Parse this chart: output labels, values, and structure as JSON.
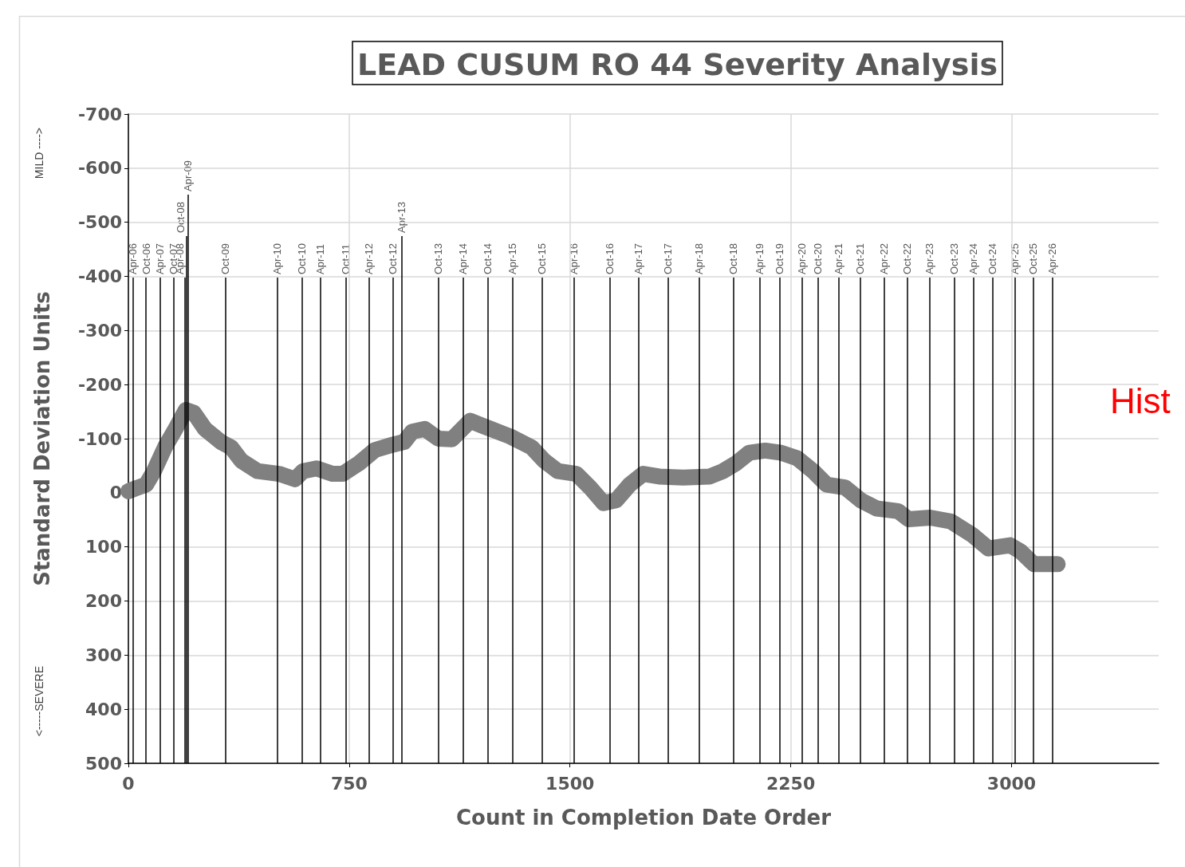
{
  "chart_data": {
    "type": "line",
    "title": "LEAD CUSUM RO 44 Severity Analysis",
    "xlabel": "Count in Completion Date Order",
    "ylabel": "Standard Deviation Units",
    "annotations": [
      "MILD ---->",
      "<-----SEVERE",
      "Hist"
    ],
    "xlim": [
      0,
      3500
    ],
    "xticks": [
      0,
      750,
      1500,
      2250,
      3000
    ],
    "ylim": [
      500,
      -700
    ],
    "yticks": [
      -700,
      -600,
      -500,
      -400,
      -300,
      -200,
      -100,
      0,
      100,
      200,
      300,
      400,
      500
    ],
    "grid": true,
    "line_style": "solid",
    "series": [
      {
        "color": "#808080",
        "x": [
          0,
          24,
          60,
          87,
          124,
          160,
          195,
          222,
          260,
          314,
          349,
          384,
          439,
          512,
          566,
          593,
          639,
          693,
          728,
          782,
          837,
          899,
          937,
          964,
          1007,
          1053,
          1099,
          1161,
          1207,
          1297,
          1370,
          1413,
          1459,
          1522,
          1568,
          1614,
          1657,
          1703,
          1749,
          1803,
          1884,
          1974,
          2020,
          2063,
          2109,
          2163,
          2217,
          2272,
          2326,
          2372,
          2434,
          2488,
          2542,
          2615,
          2651,
          2724,
          2794,
          2867,
          2922,
          2995,
          3030,
          3076,
          3119,
          3157
        ],
        "values": [
          -3,
          -8,
          -15,
          -40,
          -84,
          -118,
          -153,
          -148,
          -118,
          -94,
          -84,
          -59,
          -40,
          -35,
          -25,
          -40,
          -45,
          -35,
          -35,
          -54,
          -79,
          -89,
          -94,
          -113,
          -118,
          -100,
          -99,
          -133,
          -123,
          -104,
          -84,
          -59,
          -40,
          -35,
          -10,
          19,
          14,
          -15,
          -35,
          -30,
          -28,
          -30,
          -40,
          -54,
          -74,
          -78,
          -74,
          -64,
          -40,
          -15,
          -10,
          14,
          29,
          34,
          49,
          46,
          53,
          78,
          103,
          97,
          108,
          132,
          132,
          132
        ]
      }
    ],
    "ref_lines": [
      {
        "axis": "x",
        "value": 16,
        "label": "Apr-06"
      },
      {
        "axis": "x",
        "value": 60,
        "label": "Oct-06"
      },
      {
        "axis": "x",
        "value": 108,
        "label": "Apr-07"
      },
      {
        "axis": "x",
        "value": 154,
        "label": "Oct-07"
      },
      {
        "axis": "x",
        "value": 192,
        "label": "Apr-08"
      },
      {
        "axis": "x",
        "value": 198,
        "label": "Oct-08"
      },
      {
        "axis": "x",
        "value": 203,
        "label": "Apr-09"
      },
      {
        "axis": "x",
        "value": 330,
        "label": "Oct-09"
      },
      {
        "axis": "x",
        "value": 506,
        "label": "Apr-10"
      },
      {
        "axis": "x",
        "value": 590,
        "label": "Oct-10"
      },
      {
        "axis": "x",
        "value": 652,
        "label": "Apr-11"
      },
      {
        "axis": "x",
        "value": 739,
        "label": "Oct-11"
      },
      {
        "axis": "x",
        "value": 818,
        "label": "Apr-12"
      },
      {
        "axis": "x",
        "value": 899,
        "label": "Oct-12"
      },
      {
        "axis": "x",
        "value": 929,
        "label": "Apr-13"
      },
      {
        "axis": "x",
        "value": 1053,
        "label": "Oct-13"
      },
      {
        "axis": "x",
        "value": 1137,
        "label": "Apr-14"
      },
      {
        "axis": "x",
        "value": 1221,
        "label": "Oct-14"
      },
      {
        "axis": "x",
        "value": 1305,
        "label": "Apr-15"
      },
      {
        "axis": "x",
        "value": 1405,
        "label": "Oct-15"
      },
      {
        "axis": "x",
        "value": 1514,
        "label": "Apr-16"
      },
      {
        "axis": "x",
        "value": 1635,
        "label": "Oct-16"
      },
      {
        "axis": "x",
        "value": 1733,
        "label": "Apr-17"
      },
      {
        "axis": "x",
        "value": 1833,
        "label": "Oct-17"
      },
      {
        "axis": "x",
        "value": 1939,
        "label": "Apr-18"
      },
      {
        "axis": "x",
        "value": 2055,
        "label": "Oct-18"
      },
      {
        "axis": "x",
        "value": 2144,
        "label": "Apr-19"
      },
      {
        "axis": "x",
        "value": 2212,
        "label": "Oct-19"
      },
      {
        "axis": "x",
        "value": 2288,
        "label": "Apr-20"
      },
      {
        "axis": "x",
        "value": 2342,
        "label": "Oct-20"
      },
      {
        "axis": "x",
        "value": 2412,
        "label": "Apr-21"
      },
      {
        "axis": "x",
        "value": 2486,
        "label": "Oct-21"
      },
      {
        "axis": "x",
        "value": 2567,
        "label": "Apr-22"
      },
      {
        "axis": "x",
        "value": 2645,
        "label": "Oct-22"
      },
      {
        "axis": "x",
        "value": 2721,
        "label": "Apr-23"
      },
      {
        "axis": "x",
        "value": 2805,
        "label": "Oct-23"
      },
      {
        "axis": "x",
        "value": 2870,
        "label": "Apr-24"
      },
      {
        "axis": "x",
        "value": 2935,
        "label": "Oct-24"
      },
      {
        "axis": "x",
        "value": 3011,
        "label": "Apr-25"
      },
      {
        "axis": "x",
        "value": 3073,
        "label": "Oct-25"
      },
      {
        "axis": "x",
        "value": 3138,
        "label": "Apr-26"
      }
    ]
  }
}
